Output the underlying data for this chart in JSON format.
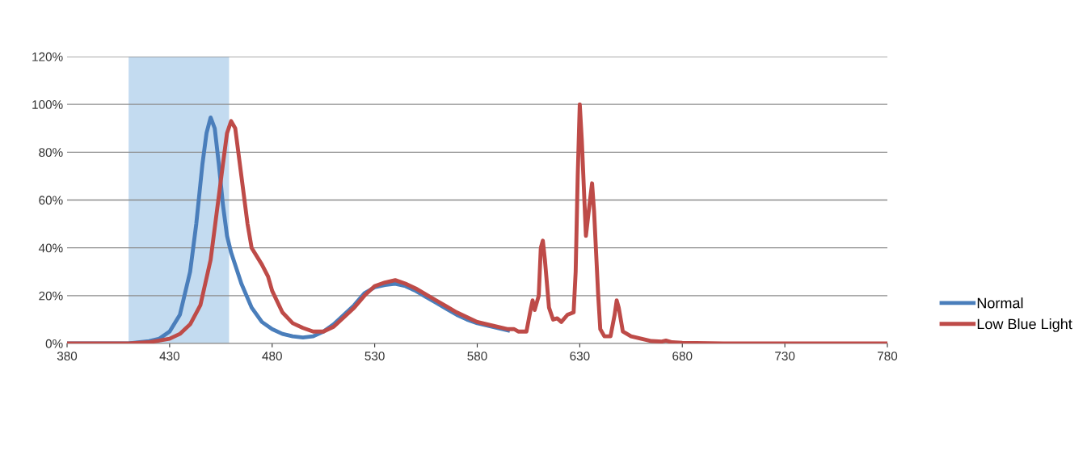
{
  "chart_data": {
    "type": "line",
    "xlim": [
      380,
      780
    ],
    "xticks": [
      380,
      430,
      480,
      530,
      580,
      630,
      680,
      730,
      780
    ],
    "ylim": [
      0,
      120
    ],
    "yticks": [
      {
        "value": 0,
        "label": "0%"
      },
      {
        "value": 20,
        "label": "20%"
      },
      {
        "value": 40,
        "label": "40%"
      },
      {
        "value": 60,
        "label": "60%"
      },
      {
        "value": 80,
        "label": "80%"
      },
      {
        "value": 100,
        "label": "100%"
      },
      {
        "value": 120,
        "label": "120%"
      }
    ],
    "grid": "y",
    "legend": "right",
    "marker": "none",
    "line_style": "solid",
    "bands": [
      {
        "axis": "x",
        "from": 410,
        "to": 459,
        "color": "#bdd7ee"
      }
    ],
    "series": [
      {
        "name": "Normal",
        "color": "#4a7ebb",
        "x": [
          380,
          400,
          410,
          420,
          425,
          430,
          435,
          440,
          443,
          446,
          448,
          450,
          452,
          454,
          456,
          458,
          460,
          465,
          470,
          475,
          480,
          485,
          490,
          495,
          500,
          505,
          510,
          515,
          520,
          525,
          530,
          535,
          540,
          545,
          550,
          555,
          560,
          565,
          570,
          575,
          580,
          585,
          590,
          595
        ],
        "values": [
          0,
          0,
          0,
          1,
          2,
          5,
          12,
          30,
          50,
          75,
          88,
          94.5,
          90,
          75,
          58,
          45,
          38,
          25,
          15,
          9,
          6,
          4,
          3,
          2.5,
          3,
          5,
          8,
          12,
          16,
          21,
          23.5,
          24.5,
          25,
          24,
          22,
          19.5,
          17,
          14.5,
          12,
          10,
          8.5,
          7.5,
          6.5,
          5.5
        ]
      },
      {
        "name": "Low Blue Light",
        "color": "#be4b48",
        "x": [
          380,
          410,
          420,
          430,
          435,
          440,
          445,
          450,
          453,
          456,
          458,
          460,
          462,
          465,
          468,
          470,
          475,
          478,
          480,
          485,
          490,
          495,
          500,
          505,
          510,
          515,
          520,
          525,
          530,
          535,
          540,
          545,
          550,
          555,
          560,
          565,
          570,
          575,
          580,
          585,
          590,
          595,
          598,
          600,
          604,
          606,
          607,
          608,
          610,
          611,
          612,
          613,
          615,
          617,
          619,
          621,
          624,
          627,
          628,
          629,
          630,
          631,
          633,
          635,
          636,
          637,
          639,
          640,
          642,
          645,
          647,
          648,
          649,
          651,
          655,
          660,
          665,
          670,
          672,
          675,
          680,
          700,
          780
        ],
        "values": [
          0,
          0,
          0.5,
          2,
          4,
          8,
          16,
          35,
          55,
          75,
          88,
          93,
          90,
          70,
          50,
          40,
          33,
          28,
          22,
          13,
          8.5,
          6.5,
          5,
          5,
          7,
          11,
          15,
          20,
          24,
          25.5,
          26.5,
          25,
          23,
          20.5,
          18,
          15.5,
          13,
          11,
          9,
          8,
          7,
          6,
          6,
          5,
          5,
          14,
          18,
          14,
          20,
          40,
          43,
          35,
          15,
          10,
          10.5,
          9,
          12,
          13,
          30,
          70,
          100,
          85,
          45,
          60,
          67,
          55,
          20,
          6,
          3,
          3,
          12,
          18,
          15,
          5,
          3,
          2,
          1,
          0.8,
          1.2,
          0.5,
          0.3,
          0,
          0
        ]
      }
    ]
  }
}
